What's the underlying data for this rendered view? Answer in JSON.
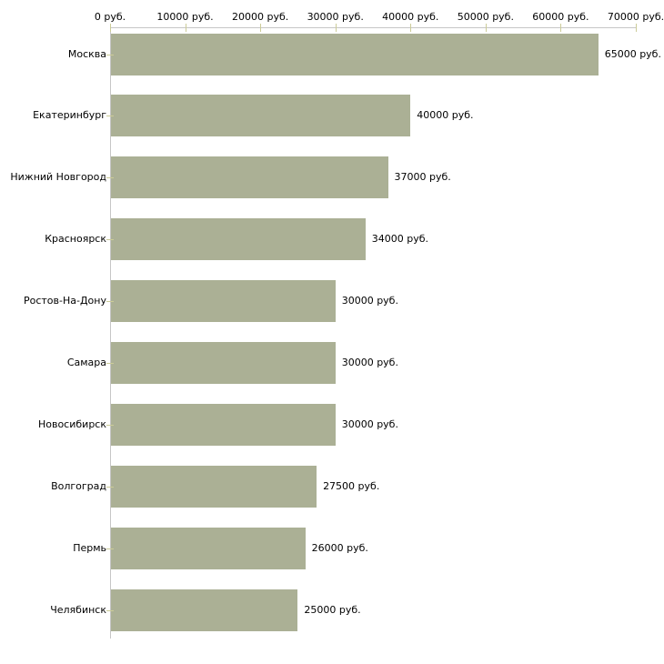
{
  "chart_data": {
    "type": "bar",
    "orientation": "horizontal",
    "title": "",
    "xlabel": "",
    "ylabel": "",
    "categories": [
      "Москва",
      "Екатеринбург",
      "Нижний Новгород",
      "Красноярск",
      "Ростов-На-Дону",
      "Самара",
      "Новосибирск",
      "Волгоград",
      "Пермь",
      "Челябинск"
    ],
    "values": [
      65000,
      40000,
      37000,
      34000,
      30000,
      30000,
      30000,
      27500,
      26000,
      25000
    ],
    "value_labels": [
      "65000 руб.",
      "40000 руб.",
      "37000 руб.",
      "34000 руб.",
      "30000 руб.",
      "30000 руб.",
      "30000 руб.",
      "27500 руб.",
      "26000 руб.",
      "25000 руб."
    ],
    "x_axis": {
      "position": "top",
      "min": 0,
      "max": 70000,
      "ticks": [
        0,
        10000,
        20000,
        30000,
        40000,
        50000,
        60000,
        70000
      ],
      "tick_labels": [
        "0 руб.",
        "10000 руб.",
        "20000 руб.",
        "30000 руб.",
        "40000 руб.",
        "50000 руб.",
        "60000 руб.",
        "70000 руб."
      ]
    },
    "grid": "off",
    "legend": "none",
    "colors": {
      "bar": "#abb095",
      "axis_line": "#c6c6c6",
      "tick_mark": "#cccc99",
      "text": "#000000",
      "background": "#ffffff"
    }
  }
}
